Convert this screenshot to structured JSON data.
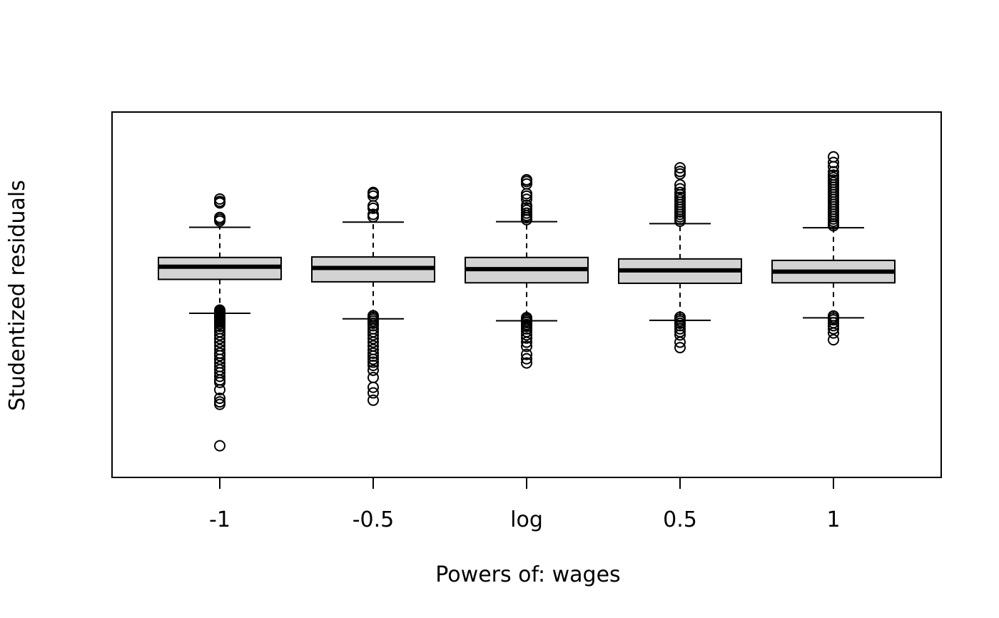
{
  "chart_data": {
    "type": "boxplot",
    "title": "",
    "xlabel": "Powers of: wages",
    "ylabel": "Studentized residuals",
    "y_axis_ticks_shown": false,
    "ylim": [
      -8.6,
      6.4
    ],
    "categories": [
      "-1",
      "-0.5",
      "log",
      "0.5",
      "1"
    ],
    "box_fill": "#d3d3d3",
    "line_color": "#000000",
    "boxes": [
      {
        "label": "-1",
        "whisker_low": -1.86,
        "q1": -0.47,
        "median": 0.05,
        "q3": 0.43,
        "whisker_high": 1.67,
        "outliers": [
          2.83,
          2.73,
          2.67,
          2.07,
          2.0,
          1.93,
          -1.73,
          -1.78,
          -1.83,
          -1.88,
          -1.93,
          -1.98,
          -2.03,
          -2.08,
          -2.13,
          -2.18,
          -2.23,
          -2.3,
          -2.4,
          -2.5,
          -2.62,
          -2.75,
          -2.9,
          -3.05,
          -3.2,
          -3.35,
          -3.5,
          -3.6,
          -3.75,
          -3.9,
          -4.05,
          -4.18,
          -4.3,
          -4.45,
          -4.6,
          -4.7,
          -5.0,
          -5.35,
          -5.5,
          -5.6,
          -7.3
        ]
      },
      {
        "label": "-0.5",
        "whisker_low": -2.09,
        "q1": -0.57,
        "median": 0.0,
        "q3": 0.45,
        "whisker_high": 1.88,
        "outliers": [
          3.1,
          3.05,
          2.95,
          2.55,
          2.45,
          2.2,
          2.1,
          -1.96,
          -2.03,
          -2.1,
          -2.18,
          -2.27,
          -2.37,
          -2.5,
          -2.62,
          -2.75,
          -2.9,
          -3.05,
          -3.2,
          -3.35,
          -3.5,
          -3.62,
          -3.75,
          -3.87,
          -4.0,
          -4.2,
          -4.5,
          -4.9,
          -5.13,
          -5.43
        ]
      },
      {
        "label": "log",
        "whisker_low": -2.17,
        "q1": -0.61,
        "median": -0.05,
        "q3": 0.43,
        "whisker_high": 1.9,
        "outliers": [
          3.62,
          3.55,
          3.45,
          3.05,
          2.95,
          2.82,
          2.57,
          2.47,
          2.37,
          2.25,
          2.15,
          2.06,
          1.98,
          -2.04,
          -2.1,
          -2.17,
          -2.24,
          -2.32,
          -2.4,
          -2.5,
          -2.62,
          -2.75,
          -2.88,
          -3.05,
          -3.22,
          -3.55,
          -3.73,
          -3.9
        ]
      },
      {
        "label": "0.5",
        "whisker_low": -2.15,
        "q1": -0.63,
        "median": -0.1,
        "q3": 0.37,
        "whisker_high": 1.82,
        "outliers": [
          4.11,
          3.96,
          3.86,
          3.41,
          3.25,
          3.1,
          3.0,
          2.9,
          2.8,
          2.7,
          2.6,
          2.5,
          2.4,
          2.3,
          2.2,
          2.1,
          2.0,
          1.92,
          -2.02,
          -2.1,
          -2.18,
          -2.27,
          -2.37,
          -2.5,
          -2.62,
          -2.75,
          -3.05,
          -3.27
        ]
      },
      {
        "label": "1",
        "whisker_low": -2.05,
        "q1": -0.61,
        "median": -0.15,
        "q3": 0.31,
        "whisker_high": 1.65,
        "outliers": [
          4.56,
          4.33,
          4.16,
          3.95,
          3.81,
          3.71,
          3.61,
          3.51,
          3.41,
          3.31,
          3.21,
          3.11,
          3.01,
          2.91,
          2.81,
          2.71,
          2.61,
          2.51,
          2.41,
          2.31,
          2.21,
          2.11,
          2.01,
          1.91,
          1.81,
          1.73,
          -1.97,
          -2.05,
          -2.13,
          -2.25,
          -2.37,
          -2.5,
          -2.67,
          -2.95
        ]
      }
    ]
  }
}
